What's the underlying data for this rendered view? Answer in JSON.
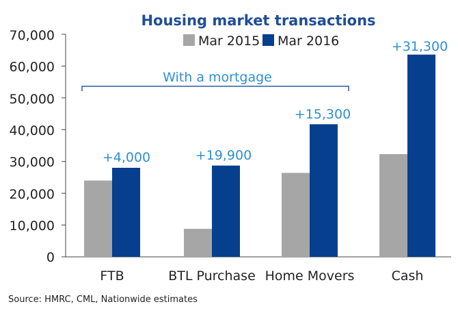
{
  "chart_data": {
    "type": "bar",
    "title": "Housing market transactions",
    "categories": [
      "FTB",
      "BTL Purchase",
      "Home Movers",
      "Cash"
    ],
    "series": [
      {
        "name": "Mar 2015",
        "values": [
          24000,
          8800,
          26400,
          32300
        ],
        "color": "#a6a6a6"
      },
      {
        "name": "Mar 2016",
        "values": [
          28000,
          28700,
          41700,
          63600
        ],
        "color": "#073f8f"
      }
    ],
    "change_labels": [
      "+4,000",
      "+19,900",
      "+15,300",
      "+31,300"
    ],
    "bracket_label": "With a mortgage",
    "yticks": [
      "0",
      "10,000",
      "20,000",
      "30,000",
      "40,000",
      "50,000",
      "60,000",
      "70,000"
    ],
    "ylim": [
      0,
      70000
    ],
    "legend_position": "top",
    "grid": false,
    "source": "Source: HMRC, CML, Nationwide estimates"
  },
  "colors": {
    "title": "#1f4e96",
    "annotation": "#2f8fd0",
    "bracket": "#2a5ca8",
    "axis": "#444444"
  }
}
